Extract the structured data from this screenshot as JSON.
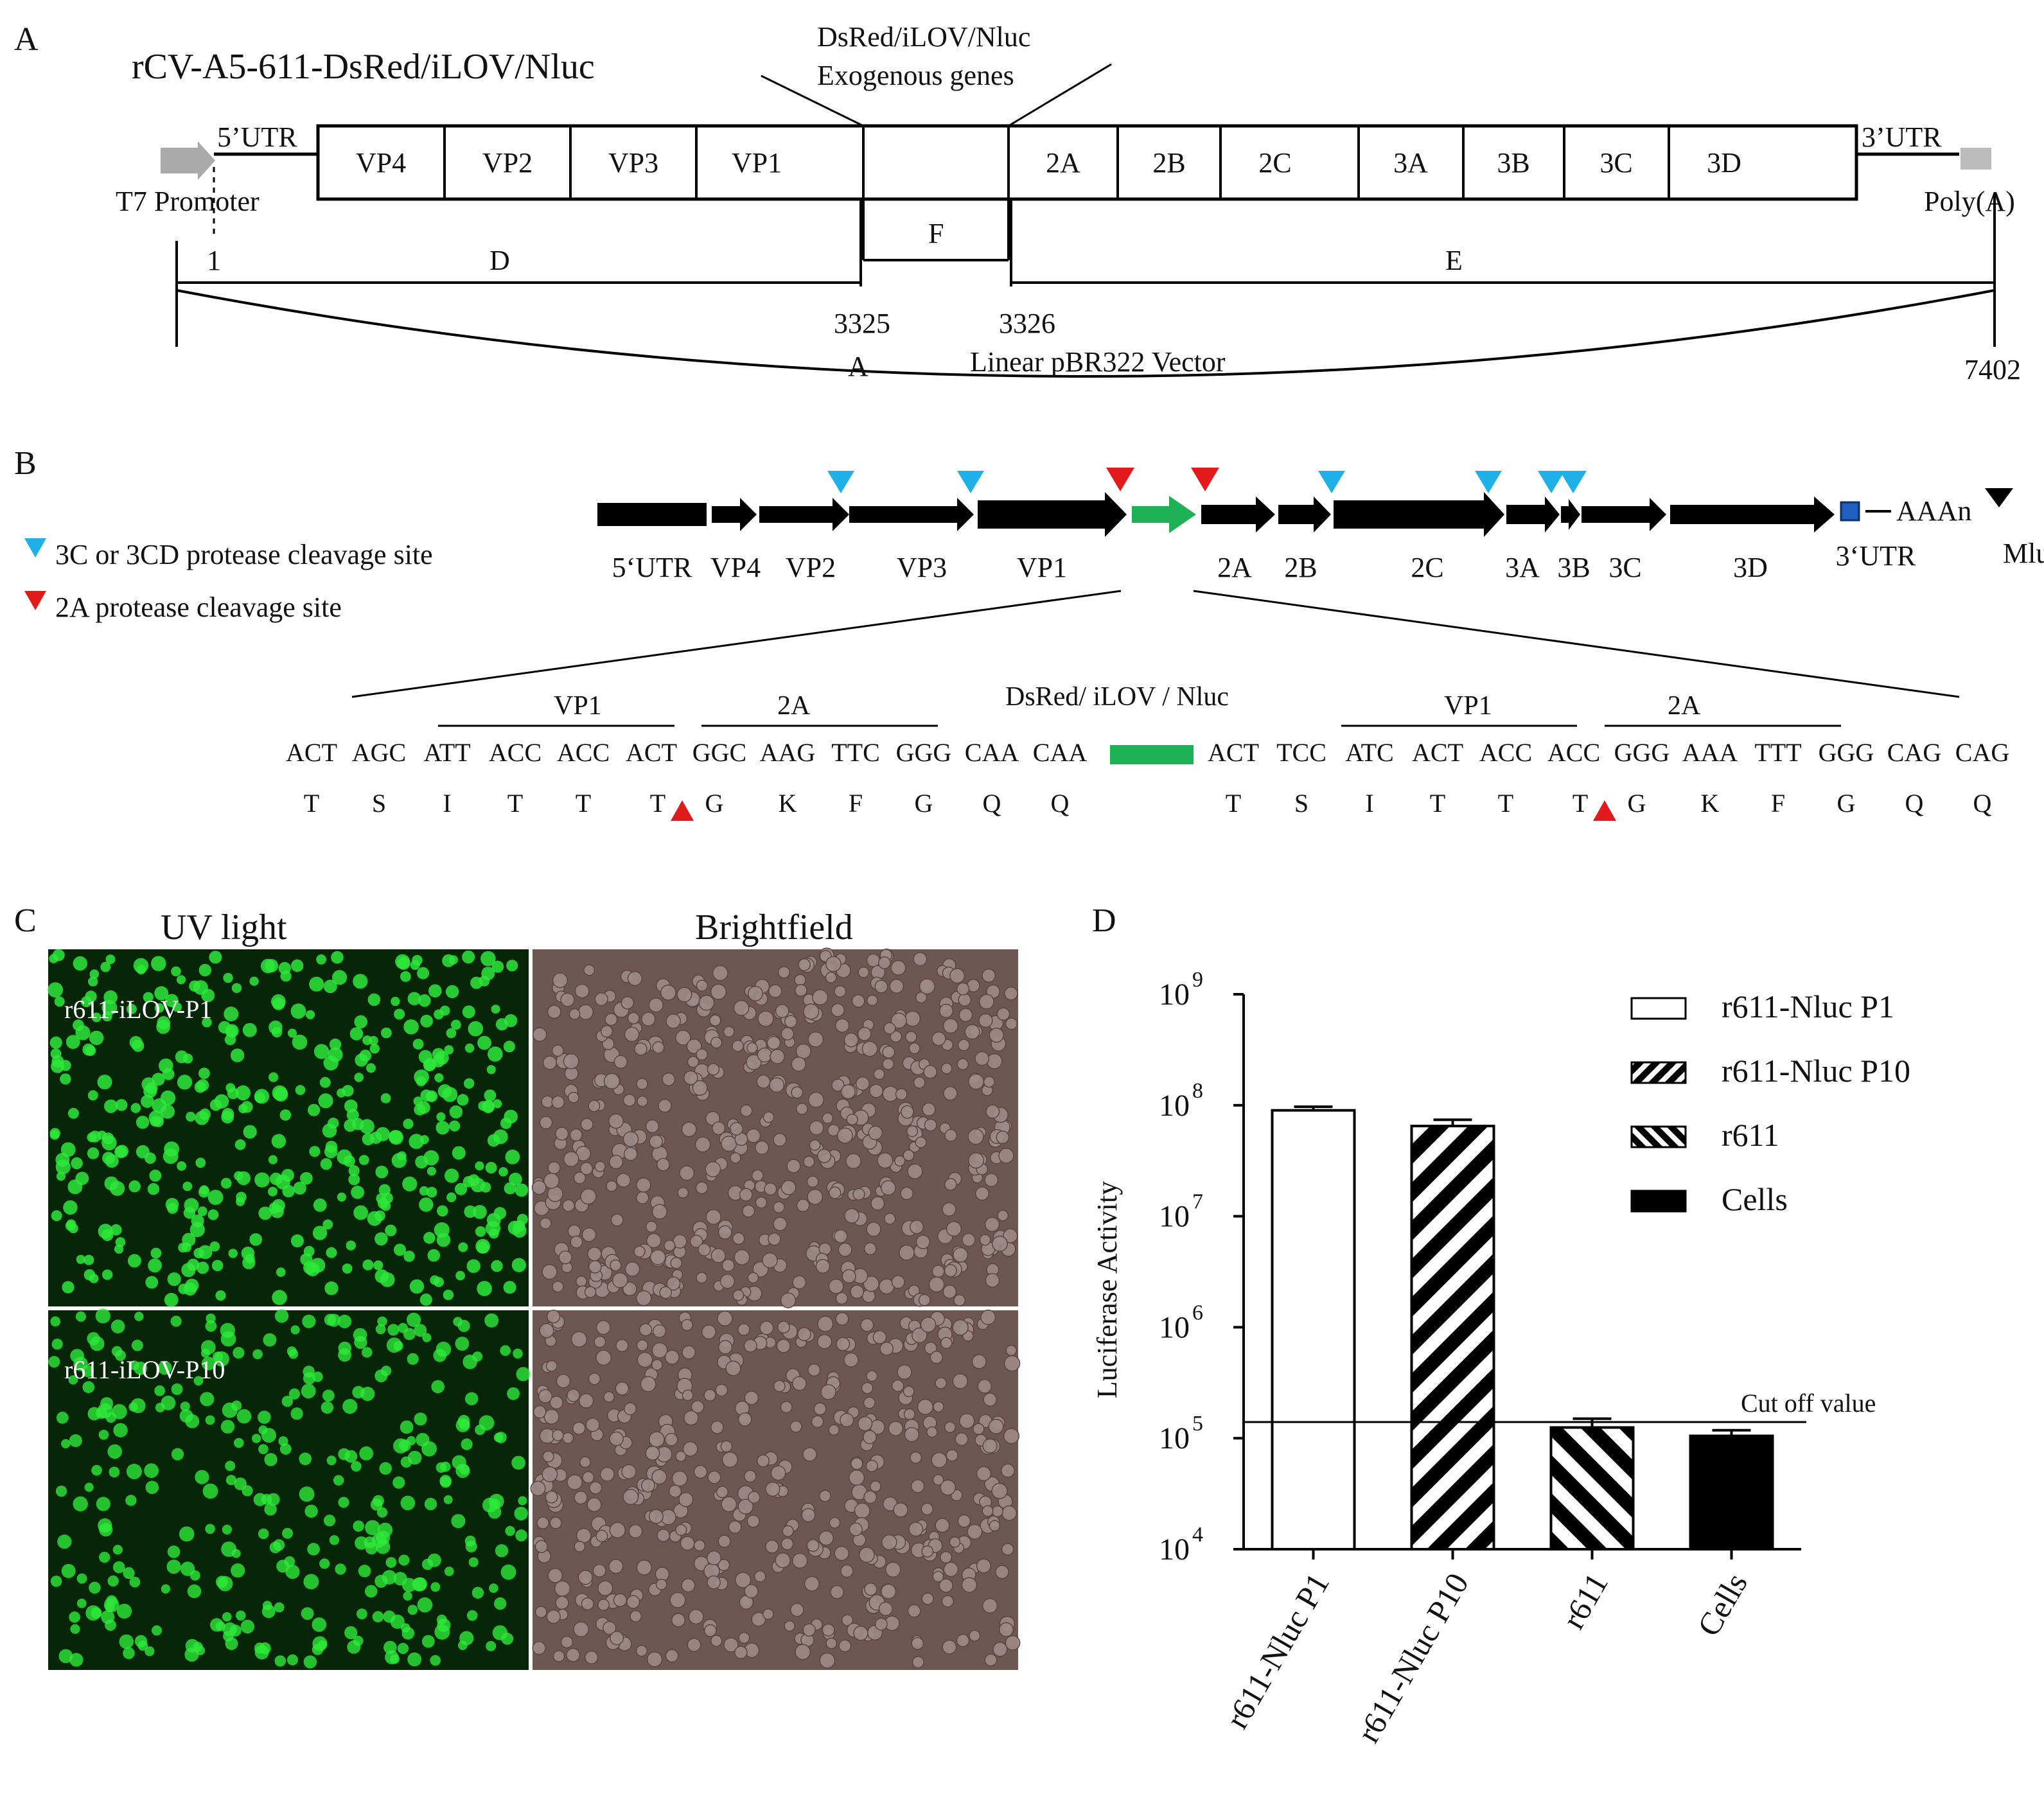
{
  "panels": {
    "A": "A",
    "B": "B",
    "C": "C",
    "D": "D"
  },
  "panelA": {
    "construct": "rCV-A5-611-DsRed/iLOV/Nluc",
    "insert_label_1": "DsRed/iLOV/Nluc",
    "insert_label_2": "Exogenous genes",
    "utr5": "5’UTR",
    "utr3": "3’UTR",
    "promoter": "T7 Promoter",
    "polyA": "Poly(A)",
    "genes": [
      "VP4",
      "VP2",
      "VP3",
      "VP1",
      "2A",
      "2B",
      "2C",
      "3A",
      "3B",
      "3C",
      "3D"
    ],
    "fragments": {
      "D": "D",
      "F": "F",
      "E": "E",
      "A": "A"
    },
    "pos_start": "1",
    "pos_3325": "3325",
    "pos_3326": "3326",
    "pos_end": "7402",
    "vector": "Linear  pBR322 Vector",
    "colors": {
      "promoter": "#aaaaaa",
      "polyA": "#bbbbbb"
    }
  },
  "panelB": {
    "legend_3c": "3C  or 3CD protease cleavage site",
    "legend_2a": "2A protease cleavage site",
    "colors": {
      "cleave_3c": "#1fb0e8",
      "cleave_2a": "#e31a1c",
      "insert": "#1fb155",
      "utr3_box": "#1f5fbf",
      "arrows": "#000000"
    },
    "genes": [
      "5‘UTR",
      "VP4",
      "VP2",
      "VP3",
      "VP1",
      "2A",
      "2B",
      "2C",
      "3A",
      "3B",
      "3C",
      "3D",
      "3‘UTR"
    ],
    "polyA": "AAAn",
    "mlu": "MluI",
    "insert_label": "DsRed/ iLOV / Nluc",
    "seq_overline": {
      "vp1": "VP1",
      "a2": "2A"
    },
    "left_codons": [
      "ACT",
      "AGC",
      "ATT",
      "ACC",
      "ACC",
      "ACT",
      "GGC",
      "AAG",
      "TTC",
      "GGG",
      "CAA",
      "CAA"
    ],
    "left_aa": [
      "T",
      "S",
      "I",
      "T",
      "T",
      "T",
      "G",
      "K",
      "F",
      "G",
      "Q",
      "Q"
    ],
    "right_codons": [
      "ACT",
      "TCC",
      "ATC",
      "ACT",
      "ACC",
      "ACC",
      "GGG",
      "AAA",
      "TTT",
      "GGG",
      "CAG",
      "CAG"
    ],
    "right_aa": [
      "T",
      "S",
      "I",
      "T",
      "T",
      "T",
      "G",
      "K",
      "F",
      "G",
      "Q",
      "Q"
    ]
  },
  "panelC": {
    "uv": "UV light",
    "bright": "Brightfield",
    "row1": "r611-iLOV-P1",
    "row2": "r611-iLOV-P10",
    "colors": {
      "uv_bg": "#062607",
      "cell": "#2ee83a",
      "bright_bg": "#6e5652",
      "bright_cell": "#9d8a86"
    }
  },
  "chart_data": {
    "type": "bar",
    "scale": "log",
    "ylabel": "Luciferase Activity",
    "ylim": [
      10000,
      1000000000
    ],
    "yticks": [
      {
        "value": 10000,
        "base": "10",
        "exp": "4"
      },
      {
        "value": 100000,
        "base": "10",
        "exp": "5"
      },
      {
        "value": 1000000,
        "base": "10",
        "exp": "6"
      },
      {
        "value": 10000000,
        "base": "10",
        "exp": "7"
      },
      {
        "value": 100000000,
        "base": "10",
        "exp": "8"
      },
      {
        "value": 1000000000,
        "base": "10",
        "exp": "9"
      }
    ],
    "categories": [
      "r611-Nluc P1",
      "r611-Nluc P10",
      "r611",
      "Cells"
    ],
    "values": [
      90000000,
      65000000,
      125000,
      105000
    ],
    "errors": [
      97000000,
      74000000,
      150000,
      118000
    ],
    "fills": [
      "white",
      "hatch-up",
      "hatch-down",
      "black"
    ],
    "cutoff": 140000,
    "cutoff_label": "Cut off value",
    "legend": [
      "r611-Nluc P1",
      "r611-Nluc P10",
      "r611",
      "Cells"
    ],
    "legend_position": "top-right"
  }
}
